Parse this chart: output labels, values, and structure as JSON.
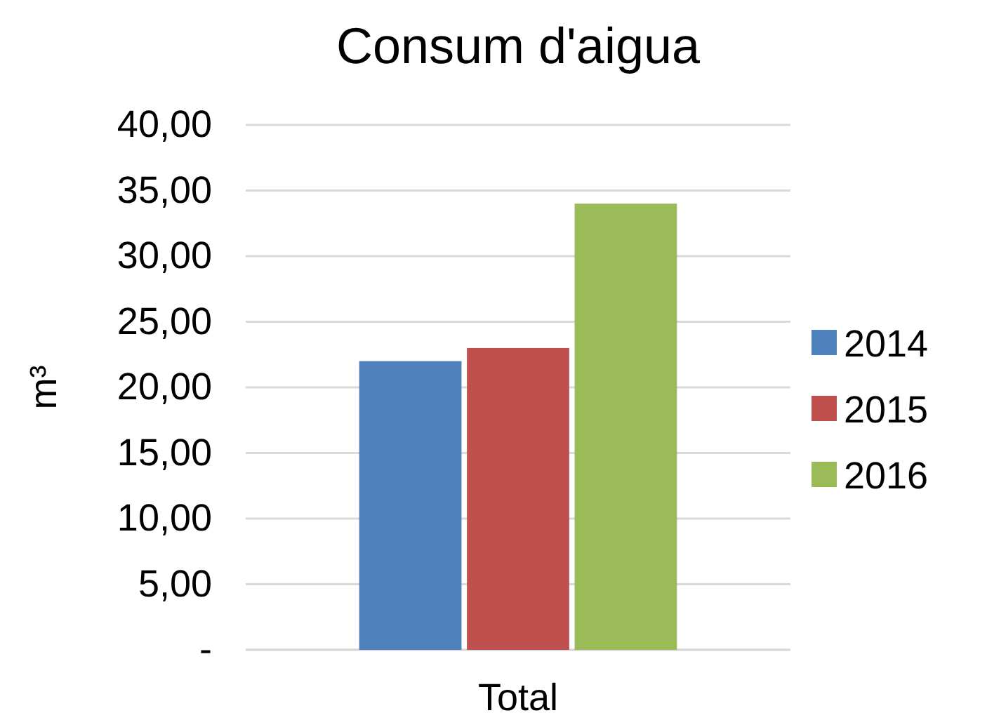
{
  "chart_data": {
    "type": "bar",
    "title": "Consum d'aigua",
    "ylabel": "m³",
    "categories": [
      "Total"
    ],
    "series": [
      {
        "name": "2014",
        "color": "#4f81bd",
        "values": [
          22.0
        ]
      },
      {
        "name": "2015",
        "color": "#c0504d",
        "values": [
          23.0
        ]
      },
      {
        "name": "2016",
        "color": "#9bbb59",
        "values": [
          34.0
        ]
      }
    ],
    "ylim": [
      0,
      40
    ],
    "yticks": [
      {
        "value": 0,
        "label": "-"
      },
      {
        "value": 5,
        "label": "5,00"
      },
      {
        "value": 10,
        "label": "10,00"
      },
      {
        "value": 15,
        "label": "15,00"
      },
      {
        "value": 20,
        "label": "20,00"
      },
      {
        "value": 25,
        "label": "25,00"
      },
      {
        "value": 30,
        "label": "30,00"
      },
      {
        "value": 35,
        "label": "35,00"
      },
      {
        "value": 40,
        "label": "40,00"
      }
    ],
    "grid": "y",
    "legend": "right"
  }
}
